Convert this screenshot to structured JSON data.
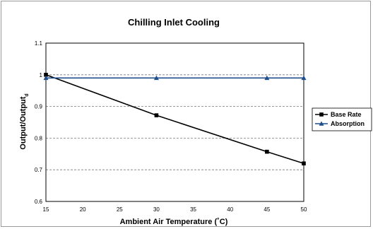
{
  "chart_data": {
    "type": "line",
    "title": "Chilling Inlet Cooling",
    "xlabel": "Ambient Air Temperature (˚C)",
    "ylabel_main": "Output/Output",
    "ylabel_sub": "d",
    "xlim": [
      15,
      50
    ],
    "ylim": [
      0.6,
      1.1
    ],
    "x_ticks": [
      "15",
      "20",
      "25",
      "30",
      "35",
      "40",
      "45",
      "50"
    ],
    "y_ticks": [
      "0.6",
      "0.7",
      "0.8",
      "0.9",
      "1",
      "1.1"
    ],
    "grid": "horizontal-dashed",
    "legend_position": "right",
    "series": [
      {
        "name": "Base Rate",
        "marker": "square",
        "color": "#000000",
        "x": [
          15,
          30,
          45,
          50
        ],
        "y": [
          1.0,
          0.872,
          0.757,
          0.72
        ]
      },
      {
        "name": "Absorption",
        "marker": "triangle",
        "color": "#1f4e8c",
        "x": [
          15,
          30,
          45,
          50
        ],
        "y": [
          0.99,
          0.99,
          0.99,
          0.99
        ]
      }
    ]
  }
}
